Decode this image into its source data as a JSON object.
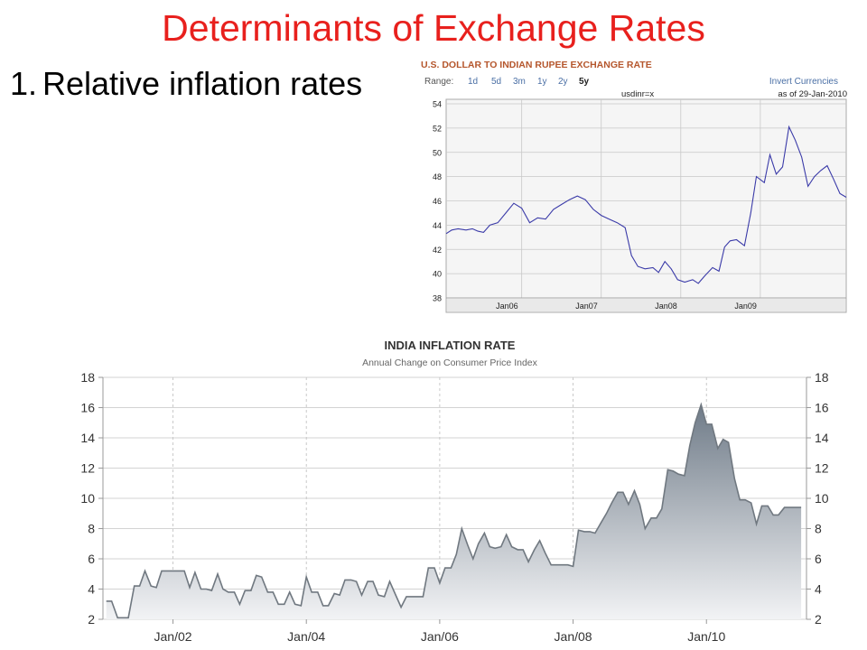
{
  "slide": {
    "title": "Determinants of Exchange Rates",
    "bullet_number": "1.",
    "bullet_text": "Relative inflation rates"
  },
  "chart_data": [
    {
      "type": "line",
      "title": "U.S. DOLLAR TO INDIAN RUPEE EXCHANGE RATE",
      "range_label": "Range:",
      "range_options": [
        "1d",
        "5d",
        "3m",
        "1y",
        "2y",
        "5y"
      ],
      "selected_range": "5y",
      "invert_label": "Invert Currencies",
      "symbol": "usdinr=x",
      "as_of": "as of 29-Jan-2010",
      "ylim": [
        38,
        54
      ],
      "yticks": [
        38,
        40,
        42,
        44,
        46,
        48,
        50,
        52,
        54
      ],
      "xlim": [
        2005.05,
        2010.08
      ],
      "xticks": [
        {
          "label": "Jan06",
          "x": 2006.0
        },
        {
          "label": "Jan07",
          "x": 2007.0
        },
        {
          "label": "Jan08",
          "x": 2008.0
        },
        {
          "label": "Jan09",
          "x": 2009.0
        }
      ],
      "colors": {
        "line": "#3a3aa8",
        "title": "#b5562c",
        "link": "#4a6fa5",
        "grid": "#c8c8c8"
      },
      "series": [
        {
          "x": [
            2005.05,
            2005.12,
            2005.2,
            2005.3,
            2005.38,
            2005.45,
            2005.52,
            2005.6,
            2005.7,
            2005.8,
            2005.9,
            2006.0,
            2006.1,
            2006.2,
            2006.3,
            2006.4,
            2006.5,
            2006.6,
            2006.7,
            2006.8,
            2006.9,
            2007.0,
            2007.1,
            2007.2,
            2007.3,
            2007.38,
            2007.46,
            2007.55,
            2007.65,
            2007.72,
            2007.8,
            2007.88,
            2007.96,
            2008.05,
            2008.15,
            2008.22,
            2008.3,
            2008.4,
            2008.48,
            2008.55,
            2008.62,
            2008.7,
            2008.8,
            2008.88,
            2008.95,
            2009.05,
            2009.12,
            2009.2,
            2009.28,
            2009.36,
            2009.44,
            2009.52,
            2009.6,
            2009.68,
            2009.76,
            2009.84,
            2009.92,
            2010.0,
            2010.08
          ],
          "y": [
            43.3,
            43.6,
            43.7,
            43.6,
            43.7,
            43.5,
            43.4,
            44.0,
            44.2,
            45.0,
            45.8,
            45.4,
            44.2,
            44.6,
            44.5,
            45.3,
            45.7,
            46.1,
            46.4,
            46.1,
            45.3,
            44.8,
            44.5,
            44.2,
            43.8,
            41.5,
            40.6,
            40.4,
            40.5,
            40.1,
            41.0,
            40.4,
            39.5,
            39.3,
            39.5,
            39.2,
            39.8,
            40.5,
            40.2,
            42.2,
            42.7,
            42.8,
            42.3,
            45.0,
            48.0,
            47.5,
            49.8,
            48.2,
            48.8,
            52.1,
            51.0,
            49.6,
            47.2,
            48.0,
            48.5,
            48.9,
            47.8,
            46.6,
            46.3
          ]
        }
      ]
    },
    {
      "type": "area",
      "title": "INDIA INFLATION RATE",
      "subtitle": "Annual Change on Consumer Price Index",
      "ylim": [
        2,
        18
      ],
      "yticks": [
        2,
        4,
        6,
        8,
        10,
        12,
        14,
        16,
        18
      ],
      "xlim": [
        2000.95,
        2011.5
      ],
      "xticks": [
        {
          "label": "Jan/02",
          "x": 2002.0
        },
        {
          "label": "Jan/04",
          "x": 2004.0
        },
        {
          "label": "Jan/06",
          "x": 2006.0
        },
        {
          "label": "Jan/08",
          "x": 2008.0
        },
        {
          "label": "Jan/10",
          "x": 2010.0
        }
      ],
      "colors": {
        "line": "#707880",
        "fill_top": "#6f7b88",
        "fill_bottom": "#f2f3f5",
        "grid": "#c4c4c4",
        "text": "#333333"
      },
      "series": [
        {
          "x": [
            2001.0,
            2001.08,
            2001.17,
            2001.25,
            2001.33,
            2001.42,
            2001.5,
            2001.58,
            2001.67,
            2001.75,
            2001.83,
            2001.92,
            2002.0,
            2002.08,
            2002.17,
            2002.25,
            2002.33,
            2002.42,
            2002.5,
            2002.58,
            2002.67,
            2002.75,
            2002.83,
            2002.92,
            2003.0,
            2003.08,
            2003.17,
            2003.25,
            2003.33,
            2003.42,
            2003.5,
            2003.58,
            2003.67,
            2003.75,
            2003.83,
            2003.92,
            2004.0,
            2004.08,
            2004.17,
            2004.25,
            2004.33,
            2004.42,
            2004.5,
            2004.58,
            2004.67,
            2004.75,
            2004.83,
            2004.92,
            2005.0,
            2005.08,
            2005.17,
            2005.25,
            2005.33,
            2005.42,
            2005.5,
            2005.58,
            2005.67,
            2005.75,
            2005.83,
            2005.92,
            2006.0,
            2006.08,
            2006.17,
            2006.25,
            2006.33,
            2006.42,
            2006.5,
            2006.58,
            2006.67,
            2006.75,
            2006.83,
            2006.92,
            2007.0,
            2007.08,
            2007.17,
            2007.25,
            2007.33,
            2007.42,
            2007.5,
            2007.58,
            2007.67,
            2007.75,
            2007.83,
            2007.92,
            2008.0,
            2008.08,
            2008.17,
            2008.25,
            2008.33,
            2008.42,
            2008.5,
            2008.58,
            2008.67,
            2008.75,
            2008.83,
            2008.92,
            2009.0,
            2009.08,
            2009.17,
            2009.25,
            2009.33,
            2009.42,
            2009.5,
            2009.58,
            2009.67,
            2009.75,
            2009.83,
            2009.92,
            2010.0,
            2010.08,
            2010.17,
            2010.25,
            2010.33,
            2010.42,
            2010.5,
            2010.58,
            2010.67,
            2010.75,
            2010.83,
            2010.92,
            2011.0,
            2011.08,
            2011.17,
            2011.25,
            2011.33,
            2011.42
          ],
          "y": [
            3.2,
            3.2,
            2.1,
            2.1,
            2.1,
            4.2,
            4.2,
            5.2,
            4.2,
            4.1,
            5.2,
            5.2,
            5.2,
            5.2,
            5.2,
            4.1,
            5.1,
            4.0,
            4.0,
            3.9,
            5.0,
            4.0,
            3.8,
            3.8,
            3.0,
            3.9,
            3.9,
            4.9,
            4.8,
            3.8,
            3.8,
            3.0,
            3.0,
            3.8,
            3.0,
            2.9,
            4.8,
            3.8,
            3.8,
            2.9,
            2.9,
            3.7,
            3.6,
            4.6,
            4.6,
            4.5,
            3.6,
            4.5,
            4.5,
            3.6,
            3.5,
            4.5,
            3.7,
            2.8,
            3.5,
            3.5,
            3.5,
            3.5,
            5.4,
            5.4,
            4.4,
            5.4,
            5.4,
            6.3,
            8.0,
            6.9,
            6.0,
            7.0,
            7.7,
            6.8,
            6.7,
            6.8,
            7.6,
            6.8,
            6.6,
            6.6,
            5.8,
            6.6,
            7.2,
            6.4,
            5.6,
            5.6,
            5.6,
            5.6,
            5.5,
            7.9,
            7.8,
            7.8,
            7.7,
            8.4,
            9.0,
            9.7,
            10.4,
            10.4,
            9.6,
            10.5,
            9.6,
            8.0,
            8.7,
            8.7,
            9.3,
            11.9,
            11.8,
            11.6,
            11.5,
            13.5,
            15.0,
            16.2,
            14.9,
            14.9,
            13.3,
            13.9,
            13.7,
            11.3,
            9.9,
            9.9,
            9.7,
            8.3,
            9.5,
            9.5,
            8.9,
            8.9,
            9.4,
            9.4,
            9.4,
            9.4
          ]
        }
      ]
    }
  ]
}
